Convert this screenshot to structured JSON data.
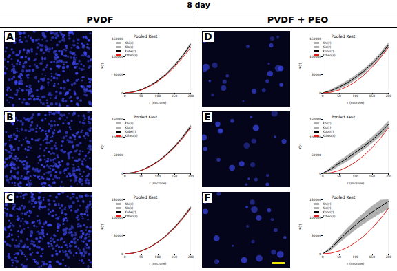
{
  "figure": {
    "title": "8 day",
    "columns": [
      "PVDF",
      "PVDF + PEO"
    ],
    "panels": [
      "A",
      "B",
      "C",
      "D",
      "E",
      "F"
    ]
  },
  "chart_data": [
    {
      "type": "line",
      "title": "Pooled Kest",
      "x_label": "r (microns)",
      "y_label": "K(r)",
      "x": [
        0,
        25,
        50,
        75,
        100,
        125,
        150,
        175,
        200
      ],
      "xlim": [
        0,
        200
      ],
      "xticks": [
        0,
        50,
        100,
        150,
        200
      ],
      "ylim": [
        0,
        150000
      ],
      "yticks": [
        0,
        50000,
        100000,
        150000
      ],
      "legend": "upper left",
      "series": [
        {
          "name": "K̂hi(r)",
          "type": "area",
          "color": "#b0b0b0",
          "line_style": "solid",
          "values": [
            0,
            2700,
            9500,
            20300,
            34700,
            53800,
            77500,
            105000,
            138000
          ]
        },
        {
          "name": "K̂lo(r)",
          "type": "area",
          "color": "#b0b0b0",
          "line_style": "solid",
          "values": [
            0,
            2300,
            8500,
            18700,
            32300,
            50200,
            72500,
            99000,
            130000
          ]
        },
        {
          "name": "K̂obs(r)",
          "type": "line",
          "color": "#000000",
          "line_style": "solid",
          "values": [
            0,
            2500,
            9000,
            19500,
            33500,
            52000,
            75000,
            102000,
            134000
          ]
        },
        {
          "name": "Ktheo(r)",
          "type": "line",
          "color": "#e0201b",
          "line_style": "solid",
          "values": [
            0,
            1963,
            7854,
            17671,
            31416,
            49087,
            70686,
            96211,
            125664
          ]
        }
      ]
    },
    {
      "type": "line",
      "title": "Pooled Kest",
      "x_label": "r (microns)",
      "y_label": "K(r)",
      "x": [
        0,
        25,
        50,
        75,
        100,
        125,
        150,
        175,
        200
      ],
      "xlim": [
        0,
        200
      ],
      "xticks": [
        0,
        50,
        100,
        150,
        200
      ],
      "ylim": [
        0,
        150000
      ],
      "yticks": [
        0,
        50000,
        100000,
        150000
      ],
      "legend": "upper left",
      "series": [
        {
          "name": "K̂hi(r)",
          "type": "area",
          "color": "#b0b0b0",
          "line_style": "solid",
          "values": [
            0,
            2400,
            9000,
            19800,
            34200,
            52800,
            75500,
            102000,
            134000
          ]
        },
        {
          "name": "K̂lo(r)",
          "type": "area",
          "color": "#b0b0b0",
          "line_style": "solid",
          "values": [
            0,
            2000,
            8000,
            18200,
            31800,
            49200,
            70500,
            96000,
            126000
          ]
        },
        {
          "name": "K̂obs(r)",
          "type": "line",
          "color": "#000000",
          "line_style": "solid",
          "values": [
            0,
            2200,
            8500,
            19000,
            33000,
            51000,
            73000,
            99000,
            130000
          ]
        },
        {
          "name": "Ktheo(r)",
          "type": "line",
          "color": "#e0201b",
          "line_style": "solid",
          "values": [
            0,
            1963,
            7854,
            17671,
            31416,
            49087,
            70686,
            96211,
            125664
          ]
        }
      ]
    },
    {
      "type": "line",
      "title": "Pooled Kest",
      "x_label": "r (microns)",
      "y_label": "K(r)",
      "x": [
        0,
        25,
        50,
        75,
        100,
        125,
        150,
        175,
        200
      ],
      "xlim": [
        0,
        200
      ],
      "xticks": [
        0,
        50,
        100,
        150,
        200
      ],
      "ylim": [
        0,
        150000
      ],
      "yticks": [
        0,
        50000,
        100000,
        150000
      ],
      "legend": "upper left",
      "series": [
        {
          "name": "K̂hi(r)",
          "type": "area",
          "color": "#b0b0b0",
          "line_style": "solid",
          "values": [
            0,
            2200,
            8500,
            18800,
            33200,
            51800,
            74500,
            101000,
            132000
          ]
        },
        {
          "name": "K̂lo(r)",
          "type": "area",
          "color": "#b0b0b0",
          "line_style": "solid",
          "values": [
            0,
            1800,
            7500,
            17200,
            30800,
            48200,
            69500,
            95000,
            124000
          ]
        },
        {
          "name": "K̂obs(r)",
          "type": "line",
          "color": "#000000",
          "line_style": "solid",
          "values": [
            0,
            2000,
            8000,
            18000,
            32000,
            50000,
            72000,
            98000,
            128000
          ]
        },
        {
          "name": "Ktheo(r)",
          "type": "line",
          "color": "#e0201b",
          "line_style": "solid",
          "values": [
            0,
            1963,
            7854,
            17671,
            31416,
            49087,
            70686,
            96211,
            125664
          ]
        }
      ]
    },
    {
      "type": "line",
      "title": "Pooled Kest",
      "x_label": "r (microns)",
      "y_label": "K(r)",
      "x": [
        0,
        25,
        50,
        75,
        100,
        125,
        150,
        175,
        200
      ],
      "xlim": [
        0,
        200
      ],
      "xticks": [
        0,
        50,
        100,
        150,
        200
      ],
      "ylim": [
        0,
        150000
      ],
      "yticks": [
        0,
        50000,
        100000,
        150000
      ],
      "legend": "upper left",
      "series": [
        {
          "name": "K̂hi(r)",
          "type": "area",
          "color": "#b0b0b0",
          "line_style": "solid",
          "values": [
            0,
            9000,
            21000,
            34000,
            49000,
            66000,
            86000,
            110000,
            139000
          ]
        },
        {
          "name": "K̂lo(r)",
          "type": "area",
          "color": "#b0b0b0",
          "line_style": "solid",
          "values": [
            0,
            3000,
            11000,
            22000,
            37000,
            54000,
            74000,
            98000,
            125000
          ]
        },
        {
          "name": "K̂obs(r)",
          "type": "line",
          "color": "#000000",
          "line_style": "solid",
          "values": [
            0,
            6000,
            16000,
            28000,
            43000,
            60000,
            80000,
            104000,
            132000
          ]
        },
        {
          "name": "Ktheo(r)",
          "type": "line",
          "color": "#e0201b",
          "line_style": "solid",
          "values": [
            0,
            1963,
            7854,
            17671,
            31416,
            49087,
            70686,
            96211,
            125664
          ]
        }
      ]
    },
    {
      "type": "line",
      "title": "Pooled Kest",
      "x_label": "r (microns)",
      "y_label": "K(r)",
      "x": [
        0,
        25,
        50,
        75,
        100,
        125,
        150,
        175,
        200
      ],
      "xlim": [
        0,
        200
      ],
      "xticks": [
        0,
        50,
        100,
        150,
        200
      ],
      "ylim": [
        0,
        150000
      ],
      "yticks": [
        0,
        50000,
        100000,
        150000
      ],
      "legend": "upper left",
      "series": [
        {
          "name": "K̂hi(r)",
          "type": "area",
          "color": "#b0b0b0",
          "line_style": "solid",
          "values": [
            0,
            17000,
            35000,
            50000,
            66000,
            82000,
            100000,
            121000,
            145000
          ]
        },
        {
          "name": "K̂lo(r)",
          "type": "area",
          "color": "#b0b0b0",
          "line_style": "solid",
          "values": [
            0,
            7000,
            21000,
            34000,
            50000,
            66000,
            84000,
            103000,
            125000
          ]
        },
        {
          "name": "K̂obs(r)",
          "type": "line",
          "color": "#000000",
          "line_style": "solid",
          "values": [
            0,
            12000,
            28000,
            42000,
            58000,
            74000,
            92000,
            112000,
            135000
          ]
        },
        {
          "name": "Ktheo(r)",
          "type": "line",
          "color": "#e0201b",
          "line_style": "solid",
          "values": [
            0,
            1963,
            7854,
            17671,
            31416,
            49087,
            70686,
            96211,
            125664
          ]
        }
      ]
    },
    {
      "type": "line",
      "title": "Pooled Kest",
      "x_label": "r (microns)",
      "y_label": "K(r)",
      "x": [
        0,
        25,
        50,
        75,
        100,
        125,
        150,
        175,
        200
      ],
      "xlim": [
        0,
        200
      ],
      "xticks": [
        0,
        50,
        100,
        150,
        200
      ],
      "ylim": [
        0,
        150000
      ],
      "yticks": [
        0,
        50000,
        100000,
        150000
      ],
      "legend": "upper left",
      "series": [
        {
          "name": "K̂hi(r)",
          "type": "area",
          "color": "#b0b0b0",
          "line_style": "solid",
          "values": [
            0,
            20000,
            46000,
            71000,
            93000,
            113000,
            132000,
            148000,
            150000
          ]
        },
        {
          "name": "K̂lo(r)",
          "type": "area",
          "color": "#b0b0b0",
          "line_style": "solid",
          "values": [
            0,
            10000,
            30000,
            49000,
            67000,
            83000,
            98000,
            112000,
            125000
          ]
        },
        {
          "name": "K̂obs(r)",
          "type": "line",
          "color": "#000000",
          "line_style": "solid",
          "values": [
            0,
            15000,
            38000,
            60000,
            80000,
            98000,
            115000,
            130000,
            145000
          ]
        },
        {
          "name": "Ktheo(r)",
          "type": "line",
          "color": "#e0201b",
          "line_style": "solid",
          "values": [
            0,
            1963,
            7854,
            17671,
            31416,
            49087,
            70686,
            96211,
            125664
          ]
        }
      ]
    }
  ]
}
